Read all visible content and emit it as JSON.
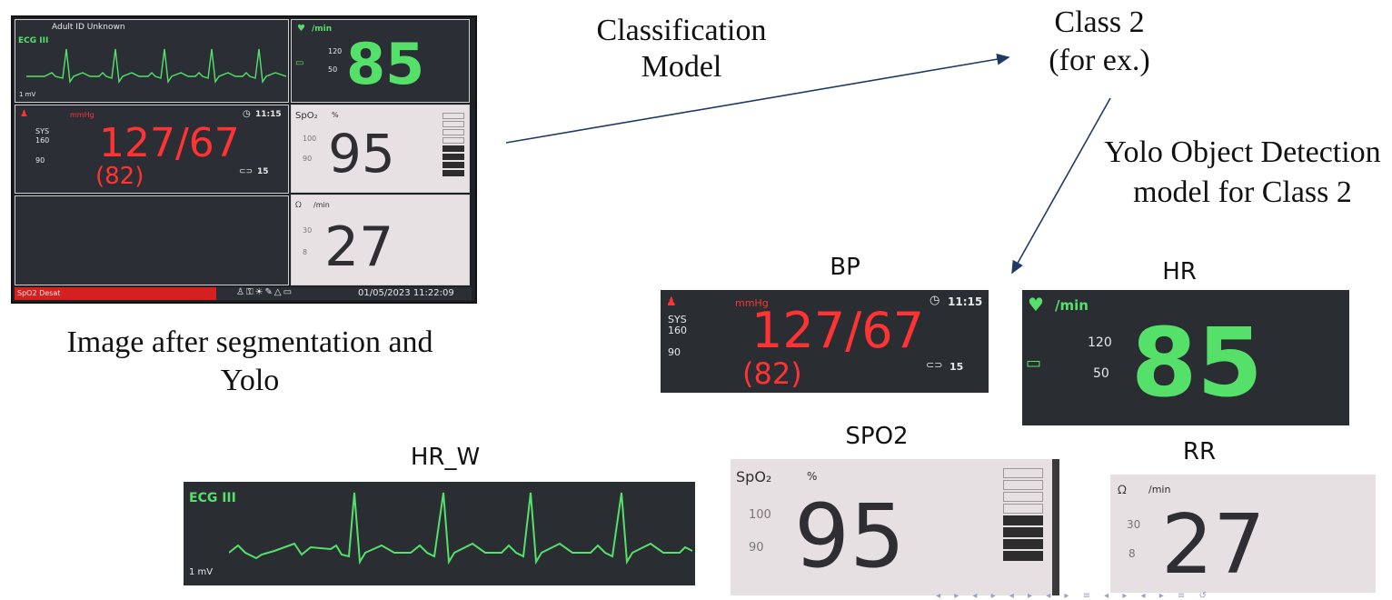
{
  "labels": {
    "classification_model": "Classification\nModel",
    "class_result": "Class 2\n(for ex.)",
    "yolo_model": "Yolo Object Detection\nmodel for Class 2",
    "image_caption": "Image after segmentation and\nYolo"
  },
  "crops": {
    "bp": "BP",
    "hr": "HR",
    "hr_w": "HR_W",
    "spo2": "SPO2",
    "rr": "RR"
  },
  "monitor": {
    "patient": "Adult  ID Unknown",
    "ecg_lead": "ECG III",
    "ecg_scale": "1 mV",
    "hr_unit": "/min",
    "hr_high": "120",
    "hr_low": "50",
    "hr_value": "85",
    "bp_unit": "mmHg",
    "bp_time": "11:15",
    "bp_sys_label": "SYS",
    "bp_high": "160",
    "bp_low": "90",
    "bp_value": "127/67",
    "bp_mean": "(82)",
    "bp_interval": "15",
    "spo2_label": "SpO₂",
    "spo2_unit": "%",
    "spo2_high": "100",
    "spo2_low": "90",
    "spo2_value": "95",
    "rr_unit": "/min",
    "rr_high": "30",
    "rr_low": "8",
    "rr_value": "27",
    "alarm_text": "SpO2 Desat",
    "datetime": "01/05/2023  11:22:09"
  },
  "colors": {
    "hr_green": "#55e06a",
    "bp_red": "#ff3333",
    "arrow": "#1f3b63"
  }
}
